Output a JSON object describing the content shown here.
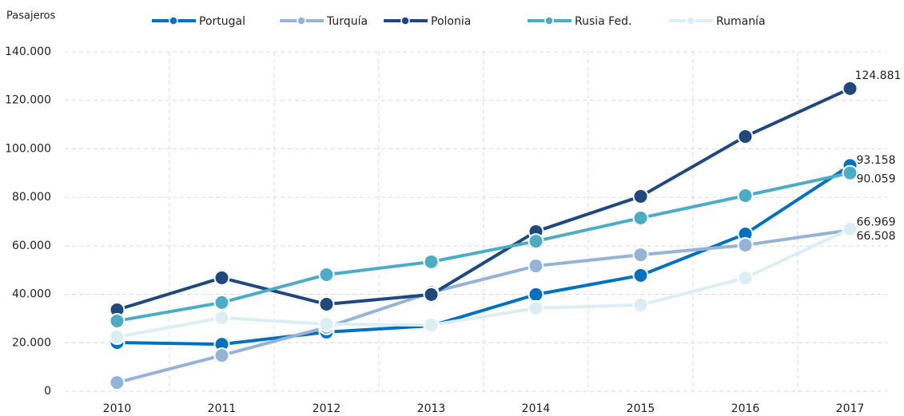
{
  "chart_data": {
    "type": "line",
    "y_label": "Pasajeros",
    "categories": [
      "2010",
      "2011",
      "2012",
      "2013",
      "2014",
      "2015",
      "2016",
      "2017"
    ],
    "series": [
      {
        "name": "Portugal",
        "color": "#0070c0",
        "values": [
          20100,
          19400,
          24400,
          27000,
          39900,
          47800,
          64900,
          93158
        ],
        "value_labels": [
          null,
          null,
          null,
          null,
          null,
          null,
          null,
          "93.158"
        ]
      },
      {
        "name": "Turquía",
        "color": "#95b3d7",
        "values": [
          3600,
          14800,
          26400,
          40800,
          51700,
          56300,
          60300,
          66508
        ],
        "value_labels": [
          null,
          null,
          null,
          null,
          null,
          null,
          null,
          "66.508"
        ]
      },
      {
        "name": "Polonia",
        "color": "#1f497d",
        "values": [
          33600,
          46800,
          35900,
          39900,
          65900,
          80400,
          105100,
          124881
        ],
        "value_labels": [
          null,
          null,
          null,
          null,
          null,
          null,
          null,
          "124.881"
        ]
      },
      {
        "name": "Rusia Fed.",
        "color": "#4bacc6",
        "values": [
          29000,
          36600,
          48100,
          53400,
          61900,
          71500,
          80700,
          90059
        ],
        "value_labels": [
          null,
          null,
          null,
          null,
          null,
          null,
          null,
          "90.059"
        ]
      },
      {
        "name": "Rumanía",
        "color": "#daeef3",
        "values": [
          22400,
          30300,
          27700,
          27300,
          34300,
          35600,
          46800,
          66969
        ],
        "value_labels": [
          null,
          null,
          null,
          null,
          null,
          null,
          null,
          "66.969"
        ]
      }
    ],
    "ylim": [
      0,
      140000
    ],
    "yticks": [
      0,
      {
        "value": 20000,
        "label": "20.000"
      },
      {
        "value": 40000,
        "label": "40.000"
      },
      {
        "value": 60000,
        "label": "60.000"
      },
      {
        "value": 80000,
        "label": "80.000"
      },
      {
        "value": 100000,
        "label": "100.000"
      },
      {
        "value": 120000,
        "label": "120.000"
      },
      {
        "value": 140000,
        "label": "140.000"
      }
    ],
    "grid": true,
    "legend": "top"
  }
}
